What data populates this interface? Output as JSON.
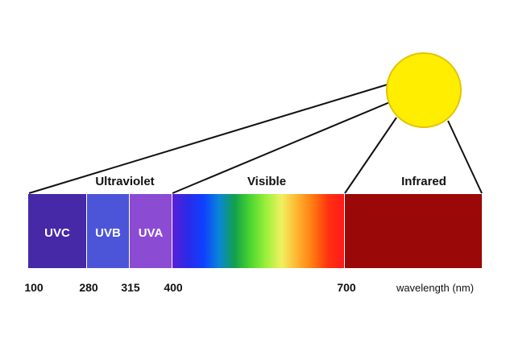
{
  "colors": {
    "sun_fill": "#ffee00",
    "sun_stroke": "#e3c400",
    "line": "#111111",
    "uvc": "#4529a6",
    "uvb": "#4c55d8",
    "uva": "#8c4bd3",
    "infrared": "#9b0808",
    "visible_gradient": [
      "#5a1fd6",
      "#2a2ae8",
      "#1040ff",
      "#0a86d8",
      "#13a04a",
      "#4cd630",
      "#9cf03c",
      "#f0f060",
      "#ffb430",
      "#ff7a10",
      "#ff3010",
      "#ff1a1a"
    ]
  },
  "regions": {
    "ultraviolet": "Ultraviolet",
    "visible": "Visible",
    "infrared": "Infrared"
  },
  "bands": {
    "uvc": "UVC",
    "uvb": "UVB",
    "uva": "UVA"
  },
  "ticks": [
    "100",
    "280",
    "315",
    "400",
    "700"
  ],
  "axis": {
    "label": "wavelength (nm)"
  }
}
